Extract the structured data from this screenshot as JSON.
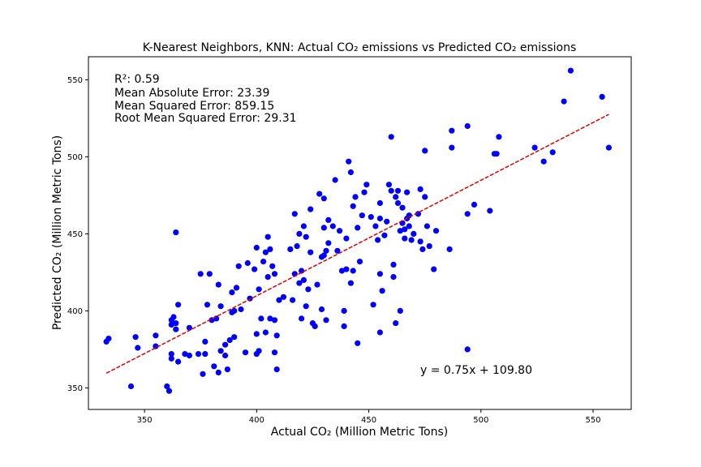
{
  "chart_data": {
    "type": "scatter",
    "title": "K-Nearest Neighbors, KNN: Actual CO₂ emissions vs Predicted CO₂ emissions",
    "xlabel": "Actual CO₂ (Million Metric Tons)",
    "ylabel": "Predicted CO₂ (Million Metric Tons)",
    "xlim": [
      325,
      567
    ],
    "ylim": [
      336,
      565
    ],
    "xticks": [
      350,
      400,
      450,
      500,
      550
    ],
    "yticks": [
      350,
      400,
      450,
      500,
      550
    ],
    "grid": false,
    "point_color": "#0000ff",
    "fit_line_color": "#dd0000",
    "stats": [
      "R²: 0.59",
      "Mean Absolute Error: 23.39",
      "Mean Squared Error: 859.15",
      "Root Mean Squared Error: 29.31"
    ],
    "equation": "y = 0.75x + 109.80",
    "fit": {
      "slope": 0.75,
      "intercept": 109.8,
      "x_range": [
        333,
        557
      ]
    },
    "points": [
      [
        333,
        380
      ],
      [
        334,
        382
      ],
      [
        346,
        383
      ],
      [
        347,
        376
      ],
      [
        344,
        351
      ],
      [
        355,
        384
      ],
      [
        355,
        377
      ],
      [
        360,
        351
      ],
      [
        361,
        348
      ],
      [
        362,
        372
      ],
      [
        362,
        369
      ],
      [
        362,
        394
      ],
      [
        362,
        391
      ],
      [
        363,
        396
      ],
      [
        364,
        388
      ],
      [
        364,
        392
      ],
      [
        364,
        451
      ],
      [
        365,
        404
      ],
      [
        365,
        367
      ],
      [
        368,
        372
      ],
      [
        370,
        371
      ],
      [
        370,
        389
      ],
      [
        374,
        372
      ],
      [
        375,
        424
      ],
      [
        376,
        359
      ],
      [
        377,
        380
      ],
      [
        377,
        372
      ],
      [
        378,
        404
      ],
      [
        379,
        424
      ],
      [
        380,
        394
      ],
      [
        381,
        364
      ],
      [
        382,
        395
      ],
      [
        383,
        360
      ],
      [
        383,
        417
      ],
      [
        384,
        403
      ],
      [
        384,
        374
      ],
      [
        386,
        371
      ],
      [
        386,
        378
      ],
      [
        387,
        362
      ],
      [
        388,
        381
      ],
      [
        389,
        399
      ],
      [
        389,
        412
      ],
      [
        390,
        383
      ],
      [
        390,
        400
      ],
      [
        391,
        415
      ],
      [
        392,
        429
      ],
      [
        393,
        401
      ],
      [
        395,
        373
      ],
      [
        396,
        431
      ],
      [
        397,
        408
      ],
      [
        399,
        427
      ],
      [
        400,
        385
      ],
      [
        400,
        372
      ],
      [
        400,
        441
      ],
      [
        401,
        374
      ],
      [
        401,
        414
      ],
      [
        402,
        395
      ],
      [
        403,
        432
      ],
      [
        404,
        386
      ],
      [
        404,
        438
      ],
      [
        405,
        448
      ],
      [
        405,
        422
      ],
      [
        406,
        440
      ],
      [
        406,
        395
      ],
      [
        407,
        429
      ],
      [
        408,
        394
      ],
      [
        408,
        424
      ],
      [
        408,
        373
      ],
      [
        409,
        384
      ],
      [
        409,
        362
      ],
      [
        410,
        407
      ],
      [
        412,
        409
      ],
      [
        415,
        440
      ],
      [
        416,
        407
      ],
      [
        417,
        463
      ],
      [
        417,
        424
      ],
      [
        418,
        442
      ],
      [
        419,
        418
      ],
      [
        419,
        450
      ],
      [
        420,
        426
      ],
      [
        420,
        395
      ],
      [
        421,
        455
      ],
      [
        421,
        420
      ],
      [
        422,
        403
      ],
      [
        422,
        448
      ],
      [
        423,
        414
      ],
      [
        424,
        466
      ],
      [
        424,
        438
      ],
      [
        425,
        392
      ],
      [
        426,
        390
      ],
      [
        427,
        417
      ],
      [
        428,
        476
      ],
      [
        429,
        435
      ],
      [
        429,
        401
      ],
      [
        430,
        454
      ],
      [
        430,
        436
      ],
      [
        430,
        473
      ],
      [
        431,
        439
      ],
      [
        431,
        394
      ],
      [
        432,
        444
      ],
      [
        432,
        459
      ],
      [
        434,
        455
      ],
      [
        435,
        485
      ],
      [
        436,
        439
      ],
      [
        437,
        452
      ],
      [
        438,
        426
      ],
      [
        439,
        400
      ],
      [
        439,
        390
      ],
      [
        440,
        447
      ],
      [
        440,
        427
      ],
      [
        441,
        497
      ],
      [
        442,
        418
      ],
      [
        442,
        490
      ],
      [
        443,
        426
      ],
      [
        443,
        468
      ],
      [
        444,
        474
      ],
      [
        445,
        454
      ],
      [
        445,
        379
      ],
      [
        446,
        432
      ],
      [
        447,
        462
      ],
      [
        448,
        477
      ],
      [
        449,
        482
      ],
      [
        451,
        461
      ],
      [
        452,
        404
      ],
      [
        453,
        455
      ],
      [
        454,
        446
      ],
      [
        455,
        386
      ],
      [
        455,
        424
      ],
      [
        455,
        470
      ],
      [
        455,
        460
      ],
      [
        456,
        413
      ],
      [
        457,
        449
      ],
      [
        458,
        458
      ],
      [
        459,
        482
      ],
      [
        460,
        478
      ],
      [
        460,
        513
      ],
      [
        461,
        422
      ],
      [
        461,
        430
      ],
      [
        462,
        474
      ],
      [
        462,
        392
      ],
      [
        463,
        478
      ],
      [
        463,
        470
      ],
      [
        464,
        452
      ],
      [
        464,
        400
      ],
      [
        465,
        467
      ],
      [
        465,
        457
      ],
      [
        466,
        447
      ],
      [
        466,
        453
      ],
      [
        467,
        460
      ],
      [
        467,
        477
      ],
      [
        468,
        455
      ],
      [
        468,
        462
      ],
      [
        469,
        446
      ],
      [
        470,
        450
      ],
      [
        472,
        463
      ],
      [
        473,
        445
      ],
      [
        473,
        479
      ],
      [
        474,
        440
      ],
      [
        475,
        474
      ],
      [
        475,
        504
      ],
      [
        476,
        455
      ],
      [
        477,
        442
      ],
      [
        479,
        427
      ],
      [
        480,
        452
      ],
      [
        486,
        440
      ],
      [
        487,
        517
      ],
      [
        487,
        506
      ],
      [
        494,
        375
      ],
      [
        494,
        463
      ],
      [
        494,
        520
      ],
      [
        497,
        469
      ],
      [
        504,
        465
      ],
      [
        506,
        502
      ],
      [
        507,
        502
      ],
      [
        508,
        513
      ],
      [
        524,
        506
      ],
      [
        528,
        497
      ],
      [
        532,
        503
      ],
      [
        537,
        536
      ],
      [
        540,
        556
      ],
      [
        554,
        539
      ],
      [
        557,
        506
      ]
    ]
  }
}
